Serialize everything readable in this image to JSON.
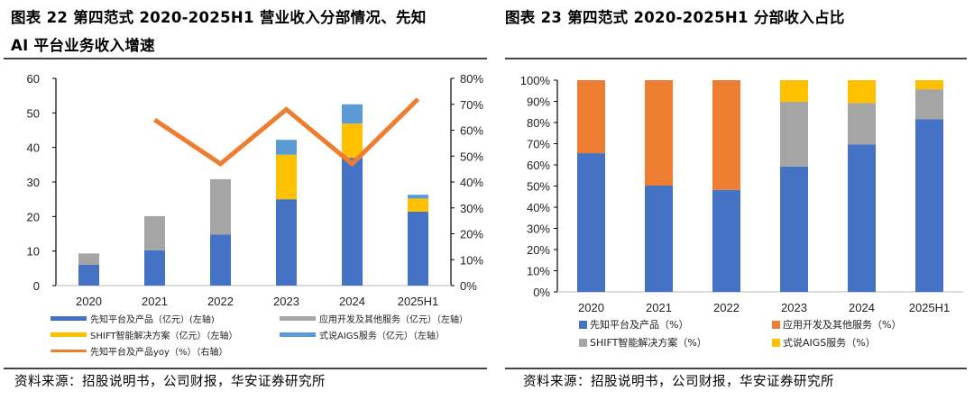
{
  "left": {
    "title_line1": "图表 22 第四范式 2020-2025H1 营业收入分部情况、先知",
    "title_line2": "AI 平台业务收入增速",
    "source": "资料来源：招股说明书，公司财报，华安证券研究所"
  },
  "right": {
    "title_line1": "图表 23 第四范式 2020-2025H1 分部收入占比",
    "source": "资料来源：招股说明书，公司财报，华安证券研究所"
  },
  "chart_data": [
    {
      "type": "bar",
      "stacked": true,
      "title": "第四范式 2020-2025H1 营业收入分部情况、先知AI平台业务收入增速",
      "categories": [
        "2020",
        "2021",
        "2022",
        "2023",
        "2024",
        "2025H1"
      ],
      "ylim": [
        0,
        60
      ],
      "yticks": [
        "0",
        "10",
        "20",
        "30",
        "40",
        "50",
        "60"
      ],
      "y2lim": [
        0,
        80
      ],
      "y2ticks": [
        "0%",
        "10%",
        "20%",
        "30%",
        "40%",
        "50%",
        "60%",
        "70%",
        "80%"
      ],
      "grid": false,
      "legend_position": "bottom",
      "series": [
        {
          "name": "先知平台及产品（亿元）(左轴)",
          "color": "#4472C4",
          "axis": "left",
          "values": [
            6.0,
            10.2,
            14.8,
            25.0,
            37.0,
            21.4
          ]
        },
        {
          "name": "应用开发及其他服务（亿元）（左轴）",
          "color": "#A5A5A5",
          "axis": "left",
          "values": [
            3.3,
            9.9,
            16.0,
            0,
            0,
            0
          ]
        },
        {
          "name": "SHIFT智能解决方案（亿元）（左轴）",
          "color": "#FFC000",
          "axis": "left",
          "values": [
            0,
            0,
            0,
            12.9,
            9.9,
            3.8
          ]
        },
        {
          "name": "式说AIGS服务（亿元）（左轴）",
          "color": "#5B9BD5",
          "axis": "left",
          "values": [
            0,
            0,
            0,
            4.3,
            5.6,
            1.1
          ]
        },
        {
          "name": "先知平台及产品yoy（%）（右轴）",
          "color": "#ED7D31",
          "type": "line",
          "axis": "right",
          "values": [
            null,
            64,
            47,
            68,
            47,
            72
          ]
        }
      ]
    },
    {
      "type": "bar",
      "stacked": true,
      "title": "第四范式 2020-2025H1 分部收入占比",
      "categories": [
        "2020",
        "2021",
        "2022",
        "2023",
        "2024",
        "2025H1"
      ],
      "ylim": [
        0,
        100
      ],
      "yticks": [
        "0%",
        "10%",
        "20%",
        "30%",
        "40%",
        "50%",
        "60%",
        "70%",
        "80%",
        "90%",
        "100%"
      ],
      "grid": false,
      "legend_position": "bottom",
      "series": [
        {
          "name": "先知平台及产品（%）",
          "color": "#4472C4",
          "values": [
            65.5,
            50.2,
            48.2,
            59.2,
            69.6,
            81.5
          ]
        },
        {
          "name": "应用开发及其他服务（%）",
          "color": "#ED7D31",
          "values": [
            34.5,
            49.8,
            51.8,
            0,
            0,
            0
          ]
        },
        {
          "name": "SHIFT智能解决方案（%）",
          "color": "#A5A5A5",
          "values": [
            0,
            0,
            0,
            30.6,
            19.6,
            14.2
          ]
        },
        {
          "name": "式说AIGS服务（%）",
          "color": "#FFC000",
          "values": [
            0,
            0,
            0,
            10.2,
            10.8,
            4.3
          ]
        }
      ]
    }
  ]
}
